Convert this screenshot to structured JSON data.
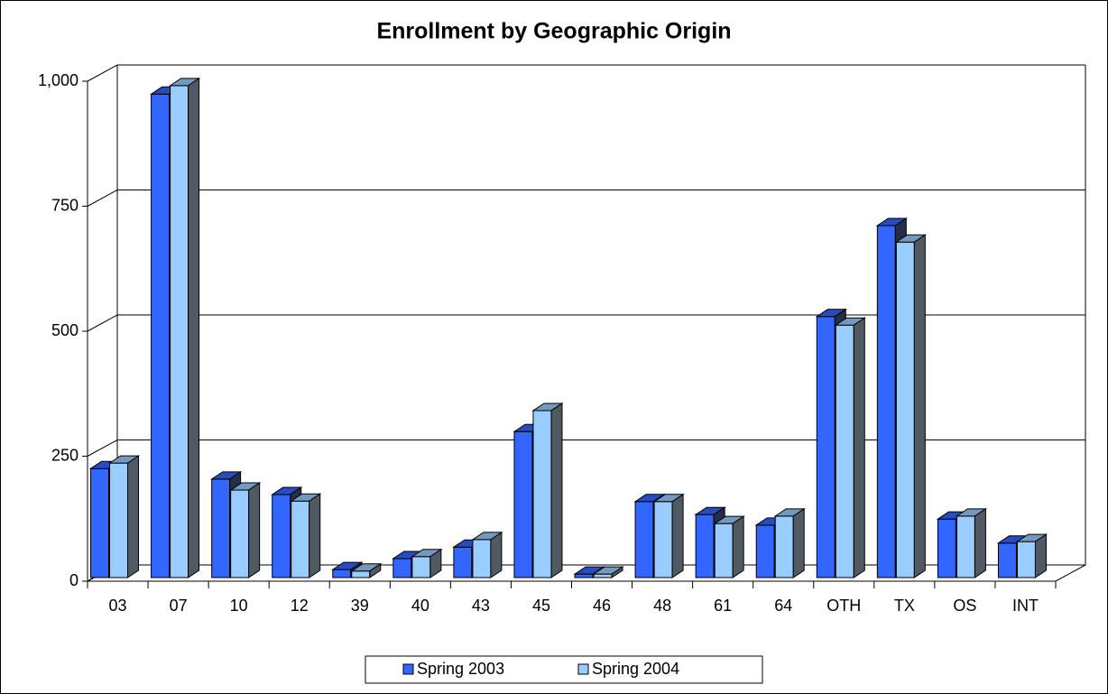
{
  "chart_data": {
    "type": "bar",
    "title": "Enrollment by Geographic Origin",
    "categories": [
      "03",
      "07",
      "10",
      "12",
      "39",
      "40",
      "43",
      "45",
      "46",
      "48",
      "61",
      "64",
      "OTH",
      "TX",
      "OS",
      "INT"
    ],
    "series": [
      {
        "name": "Spring 2003",
        "color": "#3366ff",
        "values": [
          218,
          967,
          197,
          166,
          16,
          38,
          61,
          292,
          7,
          152,
          126,
          105,
          522,
          704,
          117,
          69
        ]
      },
      {
        "name": "Spring 2004",
        "color": "#99ccff",
        "values": [
          229,
          984,
          175,
          153,
          13,
          42,
          76,
          334,
          7,
          152,
          108,
          123,
          505,
          671,
          123,
          72
        ]
      }
    ],
    "ylim": [
      0,
      1000
    ],
    "yticks": [
      0,
      250,
      500,
      750,
      {
        "value": 1000,
        "label": "1,000"
      }
    ],
    "grid": true,
    "legend": "bottom"
  }
}
